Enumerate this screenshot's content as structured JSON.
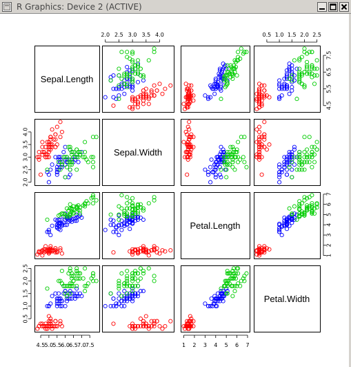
{
  "window": {
    "title": "R Graphics: Device 2 (ACTIVE)",
    "buttons": [
      "minimize-button",
      "maximize-button",
      "close-button"
    ]
  },
  "colors": {
    "setosa": "#ff0000",
    "versicolor": "#0000ff",
    "virginica": "#00cc00",
    "titlebar": "#d6d3ce"
  },
  "chart_data": {
    "type": "scatter",
    "variables": [
      "Sepal.Length",
      "Sepal.Width",
      "Petal.Length",
      "Petal.Width"
    ],
    "ranges": {
      "Sepal.Length": [
        4.3,
        7.9
      ],
      "Sepal.Width": [
        2.0,
        4.4
      ],
      "Petal.Length": [
        1.0,
        6.9
      ],
      "Petal.Width": [
        0.1,
        2.5
      ]
    },
    "axis_ticks": {
      "Sepal.Length": [
        "4.5",
        "5.5",
        "6.5",
        "7.5"
      ],
      "Sepal.Width": [
        "2.0",
        "2.5",
        "3.0",
        "3.5",
        "4.0"
      ],
      "Petal.Length": [
        "1",
        "2",
        "3",
        "4",
        "5",
        "6",
        "7"
      ],
      "Petal.Width": [
        "0.5",
        "1.0",
        "1.5",
        "2.0",
        "2.5"
      ]
    },
    "axis_tick_values": {
      "Sepal.Length": [
        4.5,
        5.5,
        6.5,
        7.5
      ],
      "Sepal.Width": [
        2.0,
        2.5,
        3.0,
        3.5,
        4.0
      ],
      "Petal.Length": [
        1,
        2,
        3,
        4,
        5,
        6,
        7
      ],
      "Petal.Width": [
        0.5,
        1.0,
        1.5,
        2.0,
        2.5
      ]
    },
    "extra_bottom_ticks": {
      "Sepal.Length": [
        "5.0",
        "6.0",
        "7.0"
      ],
      "values": [
        5.0,
        6.0,
        7.0
      ]
    },
    "series": [
      {
        "color": "#ff0000",
        "points": [
          [
            5.1,
            3.5,
            1.4,
            0.2
          ],
          [
            4.9,
            3.0,
            1.4,
            0.2
          ],
          [
            4.7,
            3.2,
            1.3,
            0.2
          ],
          [
            4.6,
            3.1,
            1.5,
            0.2
          ],
          [
            5.0,
            3.6,
            1.4,
            0.2
          ],
          [
            5.4,
            3.9,
            1.7,
            0.4
          ],
          [
            4.6,
            3.4,
            1.4,
            0.3
          ],
          [
            5.0,
            3.4,
            1.5,
            0.2
          ],
          [
            4.4,
            2.9,
            1.4,
            0.2
          ],
          [
            4.9,
            3.1,
            1.5,
            0.1
          ],
          [
            5.4,
            3.7,
            1.5,
            0.2
          ],
          [
            4.8,
            3.4,
            1.6,
            0.2
          ],
          [
            4.8,
            3.0,
            1.4,
            0.1
          ],
          [
            4.3,
            3.0,
            1.1,
            0.1
          ],
          [
            5.8,
            4.0,
            1.2,
            0.2
          ],
          [
            5.7,
            4.4,
            1.5,
            0.4
          ],
          [
            5.4,
            3.9,
            1.3,
            0.4
          ],
          [
            5.1,
            3.5,
            1.4,
            0.3
          ],
          [
            5.7,
            3.8,
            1.7,
            0.3
          ],
          [
            5.1,
            3.8,
            1.5,
            0.3
          ],
          [
            5.4,
            3.4,
            1.7,
            0.2
          ],
          [
            5.1,
            3.7,
            1.5,
            0.4
          ],
          [
            4.6,
            3.6,
            1.0,
            0.2
          ],
          [
            5.1,
            3.3,
            1.7,
            0.5
          ],
          [
            4.8,
            3.4,
            1.9,
            0.2
          ],
          [
            5.0,
            3.0,
            1.6,
            0.2
          ],
          [
            5.0,
            3.4,
            1.6,
            0.4
          ],
          [
            5.2,
            3.5,
            1.5,
            0.2
          ],
          [
            5.2,
            3.4,
            1.4,
            0.2
          ],
          [
            4.7,
            3.2,
            1.6,
            0.2
          ],
          [
            4.8,
            3.1,
            1.6,
            0.2
          ],
          [
            5.4,
            3.4,
            1.5,
            0.4
          ],
          [
            5.2,
            4.1,
            1.5,
            0.1
          ],
          [
            5.5,
            4.2,
            1.4,
            0.2
          ],
          [
            4.9,
            3.1,
            1.5,
            0.2
          ],
          [
            5.0,
            3.2,
            1.2,
            0.2
          ],
          [
            5.5,
            3.5,
            1.3,
            0.2
          ],
          [
            4.9,
            3.6,
            1.4,
            0.1
          ],
          [
            4.4,
            3.0,
            1.3,
            0.2
          ],
          [
            5.1,
            3.4,
            1.5,
            0.2
          ],
          [
            5.0,
            3.5,
            1.3,
            0.3
          ],
          [
            4.5,
            2.3,
            1.3,
            0.3
          ],
          [
            4.4,
            3.2,
            1.3,
            0.2
          ],
          [
            5.0,
            3.5,
            1.6,
            0.6
          ],
          [
            5.1,
            3.8,
            1.9,
            0.4
          ],
          [
            4.8,
            3.0,
            1.4,
            0.3
          ],
          [
            5.1,
            3.8,
            1.6,
            0.2
          ],
          [
            4.6,
            3.2,
            1.4,
            0.2
          ],
          [
            5.3,
            3.7,
            1.5,
            0.2
          ],
          [
            5.0,
            3.3,
            1.4,
            0.2
          ]
        ]
      },
      {
        "color": "#0000ff",
        "points": [
          [
            7.0,
            3.2,
            4.7,
            1.4
          ],
          [
            6.4,
            3.2,
            4.5,
            1.5
          ],
          [
            6.9,
            3.1,
            4.9,
            1.5
          ],
          [
            5.5,
            2.3,
            4.0,
            1.3
          ],
          [
            6.5,
            2.8,
            4.6,
            1.5
          ],
          [
            5.7,
            2.8,
            4.5,
            1.3
          ],
          [
            6.3,
            3.3,
            4.7,
            1.6
          ],
          [
            4.9,
            2.4,
            3.3,
            1.0
          ],
          [
            6.6,
            2.9,
            4.6,
            1.3
          ],
          [
            5.2,
            2.7,
            3.9,
            1.4
          ],
          [
            5.0,
            2.0,
            3.5,
            1.0
          ],
          [
            5.9,
            3.0,
            4.2,
            1.5
          ],
          [
            6.0,
            2.2,
            4.0,
            1.0
          ],
          [
            6.1,
            2.9,
            4.7,
            1.4
          ],
          [
            5.6,
            2.9,
            3.6,
            1.3
          ],
          [
            6.7,
            3.1,
            4.4,
            1.4
          ],
          [
            5.6,
            3.0,
            4.5,
            1.5
          ],
          [
            5.8,
            2.7,
            4.1,
            1.0
          ],
          [
            6.2,
            2.2,
            4.5,
            1.5
          ],
          [
            5.6,
            2.5,
            3.9,
            1.1
          ],
          [
            5.9,
            3.2,
            4.8,
            1.8
          ],
          [
            6.1,
            2.8,
            4.0,
            1.3
          ],
          [
            6.3,
            2.5,
            4.9,
            1.5
          ],
          [
            6.1,
            2.8,
            4.7,
            1.2
          ],
          [
            6.4,
            2.9,
            4.3,
            1.3
          ],
          [
            6.6,
            3.0,
            4.4,
            1.4
          ],
          [
            6.8,
            2.8,
            4.8,
            1.4
          ],
          [
            6.7,
            3.0,
            5.0,
            1.7
          ],
          [
            6.0,
            2.9,
            4.5,
            1.5
          ],
          [
            5.7,
            2.6,
            3.5,
            1.0
          ],
          [
            5.5,
            2.4,
            3.8,
            1.1
          ],
          [
            5.5,
            2.4,
            3.7,
            1.0
          ],
          [
            5.8,
            2.7,
            3.9,
            1.2
          ],
          [
            6.0,
            2.7,
            5.1,
            1.6
          ],
          [
            5.4,
            3.0,
            4.5,
            1.5
          ],
          [
            6.0,
            3.4,
            4.5,
            1.6
          ],
          [
            6.7,
            3.1,
            4.7,
            1.5
          ],
          [
            6.3,
            2.3,
            4.4,
            1.3
          ],
          [
            5.6,
            3.0,
            4.1,
            1.3
          ],
          [
            5.5,
            2.5,
            4.0,
            1.3
          ],
          [
            5.5,
            2.6,
            4.4,
            1.2
          ],
          [
            6.1,
            3.0,
            4.6,
            1.4
          ],
          [
            5.8,
            2.6,
            4.0,
            1.2
          ],
          [
            5.0,
            2.3,
            3.3,
            1.0
          ],
          [
            5.6,
            2.7,
            4.2,
            1.3
          ],
          [
            5.7,
            3.0,
            4.2,
            1.2
          ],
          [
            5.7,
            2.9,
            4.2,
            1.3
          ],
          [
            6.2,
            2.9,
            4.3,
            1.3
          ],
          [
            5.1,
            2.5,
            3.0,
            1.1
          ],
          [
            5.7,
            2.8,
            4.1,
            1.3
          ]
        ]
      },
      {
        "color": "#00cc00",
        "points": [
          [
            6.3,
            3.3,
            6.0,
            2.5
          ],
          [
            5.8,
            2.7,
            5.1,
            1.9
          ],
          [
            7.1,
            3.0,
            5.9,
            2.1
          ],
          [
            6.3,
            2.9,
            5.6,
            1.8
          ],
          [
            6.5,
            3.0,
            5.8,
            2.2
          ],
          [
            7.6,
            3.0,
            6.6,
            2.1
          ],
          [
            4.9,
            2.5,
            4.5,
            1.7
          ],
          [
            7.3,
            2.9,
            6.3,
            1.8
          ],
          [
            6.7,
            2.5,
            5.8,
            1.8
          ],
          [
            7.2,
            3.6,
            6.1,
            2.5
          ],
          [
            6.5,
            3.2,
            5.1,
            2.0
          ],
          [
            6.4,
            2.7,
            5.3,
            1.9
          ],
          [
            6.8,
            3.0,
            5.5,
            2.1
          ],
          [
            5.7,
            2.5,
            5.0,
            2.0
          ],
          [
            5.8,
            2.8,
            5.1,
            2.4
          ],
          [
            6.4,
            3.2,
            5.3,
            2.3
          ],
          [
            6.5,
            3.0,
            5.5,
            1.8
          ],
          [
            7.7,
            3.8,
            6.7,
            2.2
          ],
          [
            7.7,
            2.6,
            6.9,
            2.3
          ],
          [
            6.0,
            2.2,
            5.0,
            1.5
          ],
          [
            6.9,
            3.2,
            5.7,
            2.3
          ],
          [
            5.6,
            2.8,
            4.9,
            2.0
          ],
          [
            7.7,
            2.8,
            6.7,
            2.0
          ],
          [
            6.3,
            2.7,
            4.9,
            1.8
          ],
          [
            6.7,
            3.3,
            5.7,
            2.1
          ],
          [
            7.2,
            3.2,
            6.0,
            1.8
          ],
          [
            6.2,
            2.8,
            4.8,
            1.8
          ],
          [
            6.1,
            3.0,
            4.9,
            1.8
          ],
          [
            6.4,
            2.8,
            5.6,
            2.1
          ],
          [
            7.2,
            3.0,
            5.8,
            1.6
          ],
          [
            7.4,
            2.8,
            6.1,
            1.9
          ],
          [
            7.9,
            3.8,
            6.4,
            2.0
          ],
          [
            6.4,
            2.8,
            5.6,
            2.2
          ],
          [
            6.3,
            2.8,
            5.1,
            1.5
          ],
          [
            6.1,
            2.6,
            5.6,
            1.4
          ],
          [
            7.7,
            3.0,
            6.1,
            2.3
          ],
          [
            6.3,
            3.4,
            5.6,
            2.4
          ],
          [
            6.4,
            3.1,
            5.5,
            1.8
          ],
          [
            6.0,
            3.0,
            4.8,
            1.8
          ],
          [
            6.9,
            3.1,
            5.4,
            2.1
          ],
          [
            6.7,
            3.1,
            5.6,
            2.4
          ],
          [
            6.9,
            3.1,
            5.1,
            2.3
          ],
          [
            5.8,
            2.7,
            5.1,
            1.9
          ],
          [
            6.8,
            3.2,
            5.9,
            2.3
          ],
          [
            6.7,
            3.3,
            5.7,
            2.5
          ],
          [
            6.7,
            3.0,
            5.2,
            2.3
          ],
          [
            6.3,
            2.5,
            5.0,
            1.9
          ],
          [
            6.5,
            3.0,
            5.2,
            2.0
          ],
          [
            6.2,
            3.4,
            5.4,
            2.3
          ],
          [
            5.9,
            3.0,
            5.1,
            1.8
          ]
        ]
      }
    ]
  }
}
